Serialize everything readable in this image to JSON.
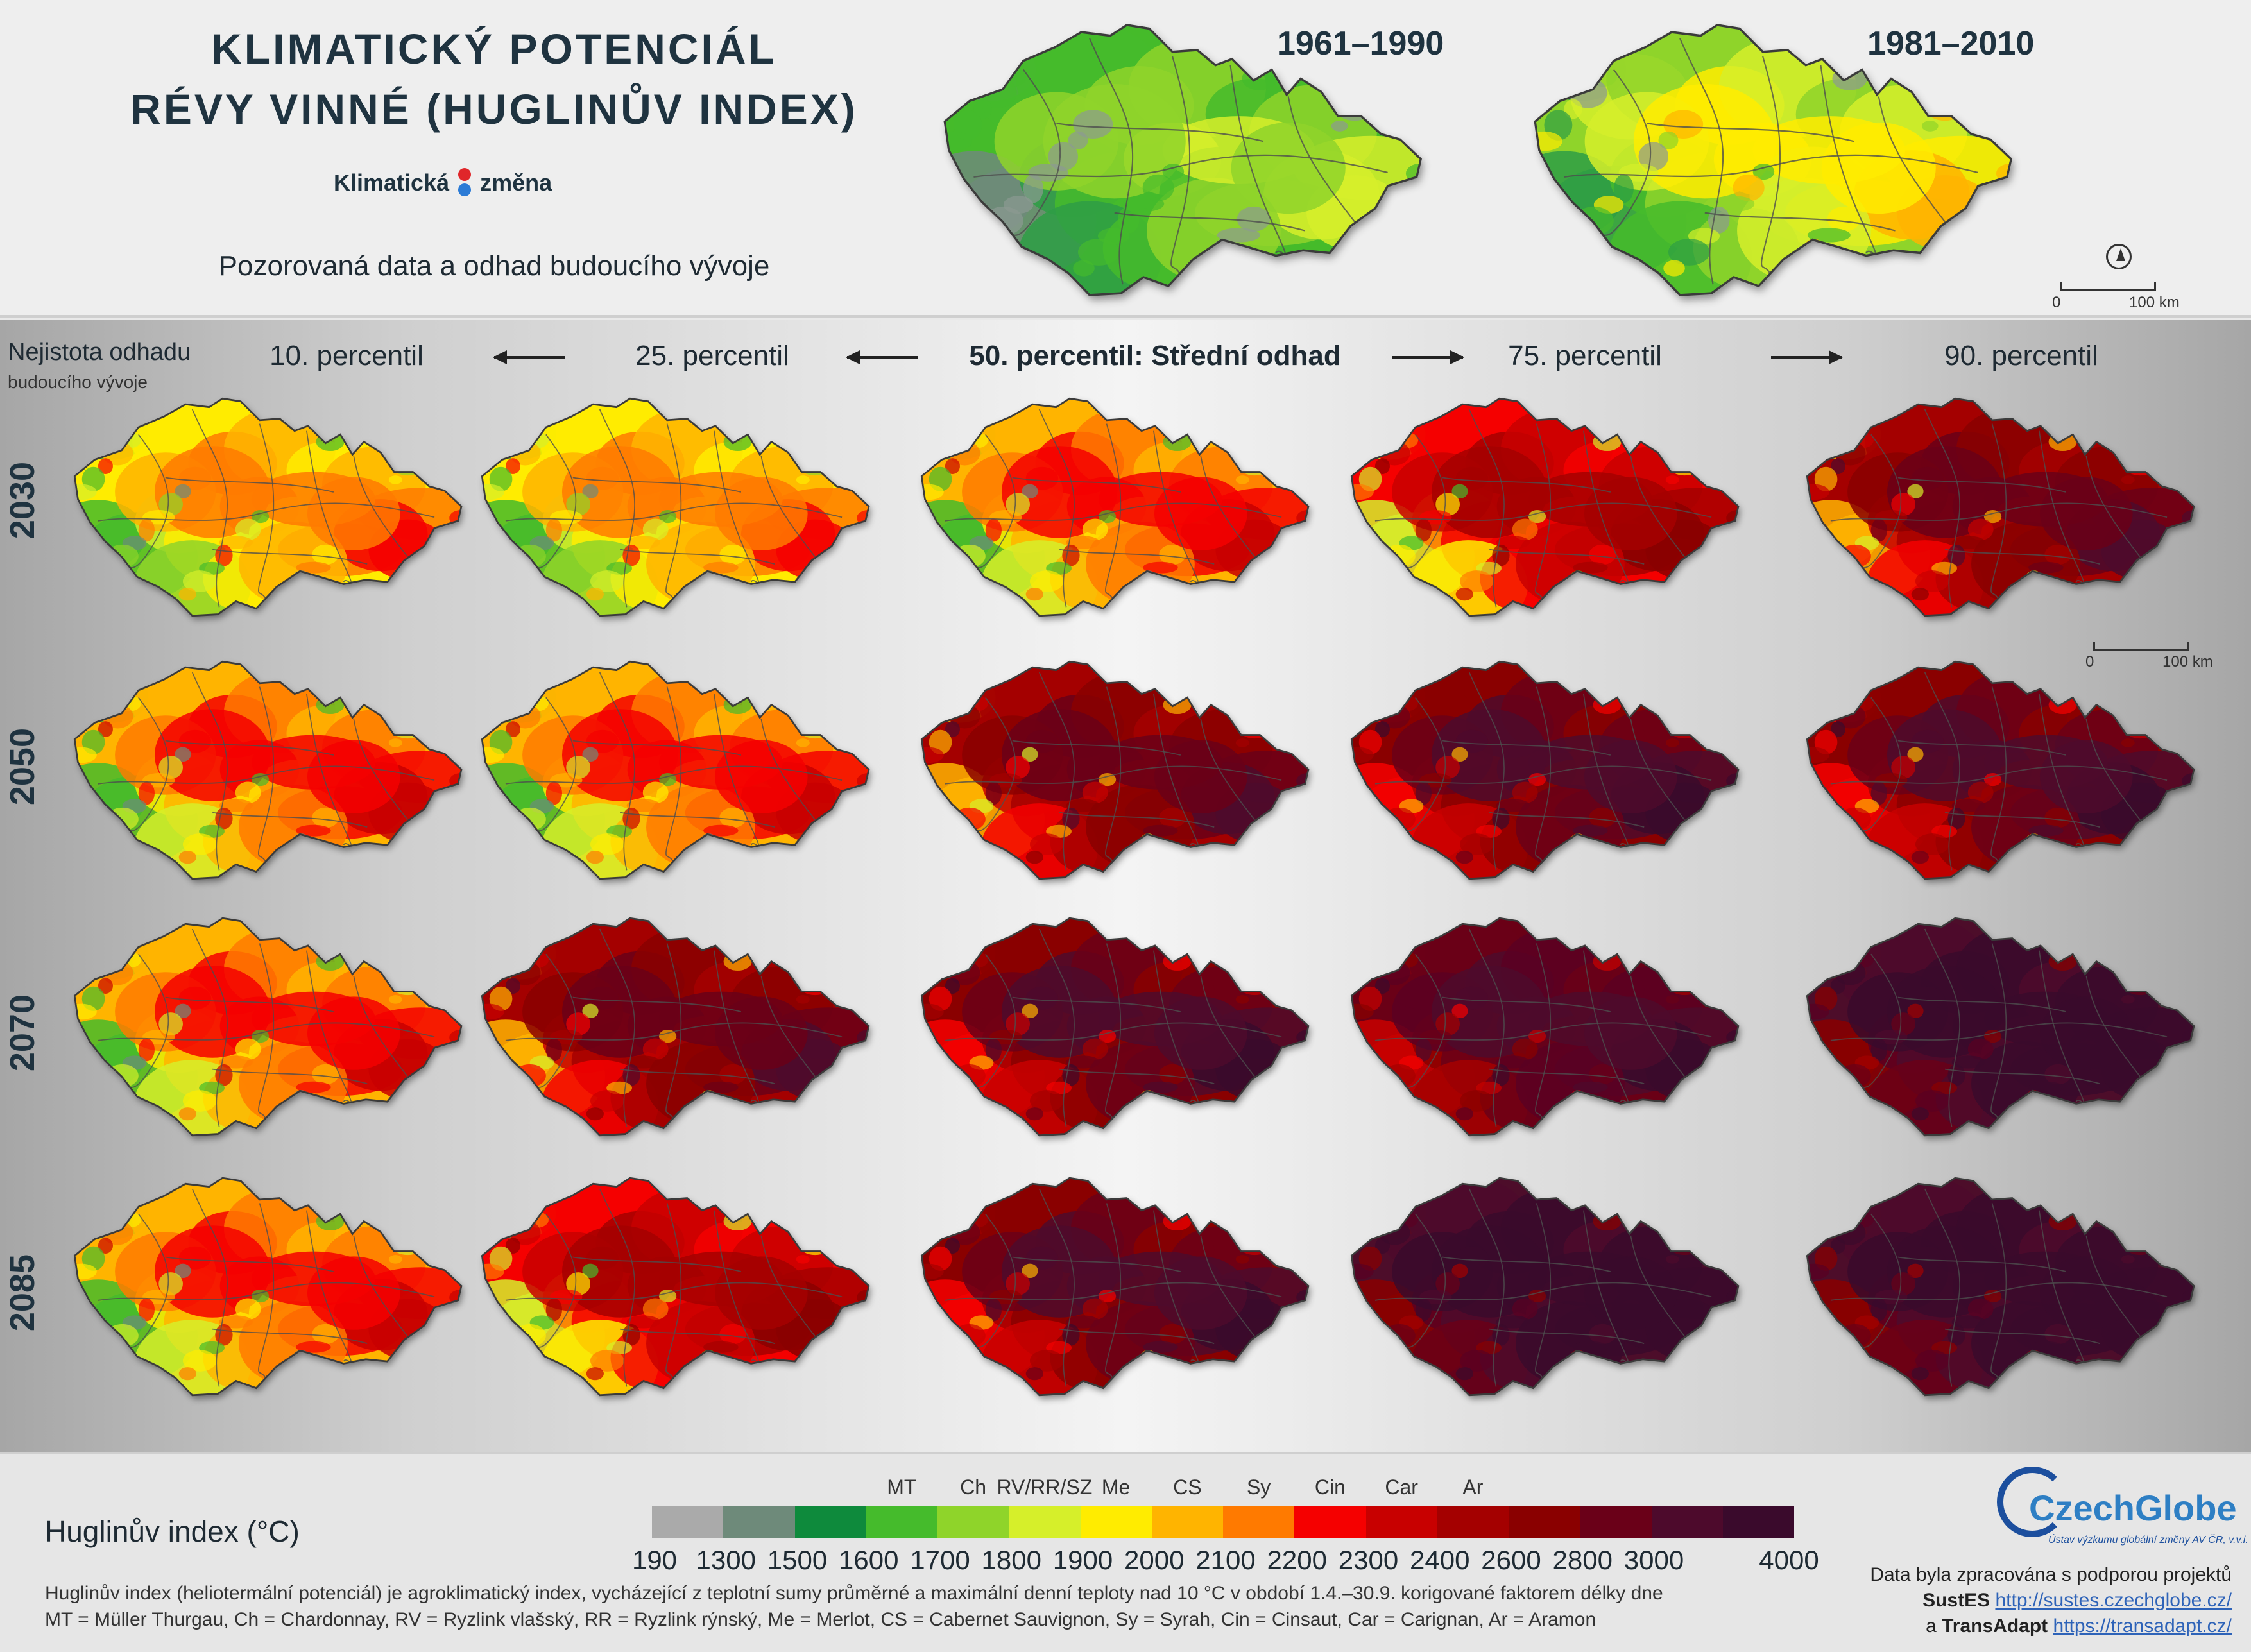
{
  "title": {
    "line1": "KLIMATICKÝ POTENCIÁL",
    "line2": "RÉVY VINNÉ (HUGLINŮV INDEX)"
  },
  "brand": {
    "part1": "Klimatická",
    "part2": "změna",
    "dot_colors": [
      "#e0262a",
      "#2b7bd6"
    ]
  },
  "subtitle": "Pozorovaná data a odhad budoucího vývoje",
  "observed": {
    "periods": [
      "1961–1990",
      "1981–2010"
    ],
    "maps": [
      {
        "period": "1961–1990",
        "palette": [
          "#8c9a92",
          "#6e8a7a",
          "#2e9e45",
          "#45bb2c",
          "#8fd42a",
          "#d6ef2a"
        ]
      },
      {
        "period": "1981–2010",
        "palette": [
          "#8c9a92",
          "#2e9e45",
          "#45bb2c",
          "#8fd42a",
          "#d6ef2a",
          "#ffec00",
          "#ffb400"
        ]
      }
    ]
  },
  "scale": {
    "zero": "0",
    "hundred": "100 km"
  },
  "uncertainty": {
    "line1": "Nejistota odhadu",
    "line2": "budoucího vývoje"
  },
  "percentiles": [
    "10. percentil",
    "25. percentil",
    "50. percentil: Střední odhad",
    "75. percentil",
    "90. percentil"
  ],
  "years": [
    "2030",
    "2050",
    "2070",
    "2085"
  ],
  "scenario_palettes": [
    [
      "#6e8a7a",
      "#45bb2c",
      "#8fd42a",
      "#d6ef2a",
      "#ffec00",
      "#ffb400",
      "#ff7a00",
      "#f50000"
    ],
    [
      "#6e8a7a",
      "#45bb2c",
      "#d6ef2a",
      "#ffec00",
      "#ffb400",
      "#ff7a00",
      "#f50000",
      "#c80000"
    ],
    [
      "#45bb2c",
      "#d6ef2a",
      "#ffec00",
      "#ff7a00",
      "#f50000",
      "#c80000",
      "#a40000",
      "#8a0000"
    ],
    [
      "#d6ef2a",
      "#ffb400",
      "#f50000",
      "#c80000",
      "#a40000",
      "#8a0000",
      "#6a0018",
      "#4d0a2c"
    ],
    [
      "#ffb400",
      "#f50000",
      "#c80000",
      "#a40000",
      "#8a0000",
      "#6a0018",
      "#4d0a2c",
      "#3a0a2c"
    ],
    [
      "#f50000",
      "#c80000",
      "#a40000",
      "#8a0000",
      "#6a0018",
      "#5a0022",
      "#4d0a2c",
      "#3a0a2c"
    ],
    [
      "#a40000",
      "#8a0000",
      "#6a0018",
      "#5a0022",
      "#4d0a2c",
      "#3a0a2c",
      "#3a0a2c",
      "#3a0a2c"
    ]
  ],
  "grid": [
    [
      0,
      0,
      1,
      2,
      3
    ],
    [
      1,
      1,
      3,
      4,
      4
    ],
    [
      1,
      3,
      4,
      5,
      6
    ],
    [
      1,
      2,
      4,
      6,
      6
    ]
  ],
  "legend": {
    "title": "Huglinův index (°C)",
    "colors": [
      "#aaaaaa",
      "#6e8a7a",
      "#0e8a3c",
      "#45bb2c",
      "#8fd42a",
      "#d6ef2a",
      "#ffec00",
      "#ffb400",
      "#ff7a00",
      "#f50000",
      "#c80000",
      "#a40000",
      "#8a0000",
      "#6a0018",
      "#4d0a2c",
      "#3a0a2c"
    ],
    "ticks": [
      "190",
      "1300",
      "1500",
      "1600",
      "1700",
      "1800",
      "1900",
      "2000",
      "2100",
      "2200",
      "2300",
      "2400",
      "2600",
      "2800",
      "3000",
      "4000"
    ],
    "varieties": [
      {
        "code": "MT",
        "boundary": 3
      },
      {
        "code": "Ch",
        "boundary": 4
      },
      {
        "code": "RV/RR/SZ",
        "boundary": 5
      },
      {
        "code": "Me",
        "boundary": 6
      },
      {
        "code": "CS",
        "boundary": 7
      },
      {
        "code": "Sy",
        "boundary": 8
      },
      {
        "code": "Cin",
        "boundary": 9
      },
      {
        "code": "Car",
        "boundary": 10
      },
      {
        "code": "Ar",
        "boundary": 11
      }
    ]
  },
  "description": {
    "line1": "Huglinův index (heliotermální potenciál) je agroklimatický index, vycházející z teplotní sumy průměrné a maximální denní teploty nad 10 °C v období 1.4.–30.9. korigované faktorem délky dne",
    "line2": "MT = Müller Thurgau, Ch = Chardonnay,  RV = Ryzlink vlašský, RR = Ryzlink rýnský, Me = Merlot, CS = Cabernet Sauvignon, Sy = Syrah, Cin = Cinsaut, Car = Carignan, Ar = Aramon"
  },
  "logo": {
    "name": "CzechGlobe",
    "sub": "Ústav výzkumu globální změny AV ČR, v.v.i."
  },
  "credits": {
    "line1": "Data byla zpracována s podporou projektů",
    "project1": "SustES",
    "url1": "http://sustes.czechglobe.cz/",
    "and": "a",
    "project2": "TransAdapt",
    "url2": "https://transadapt.cz/"
  }
}
